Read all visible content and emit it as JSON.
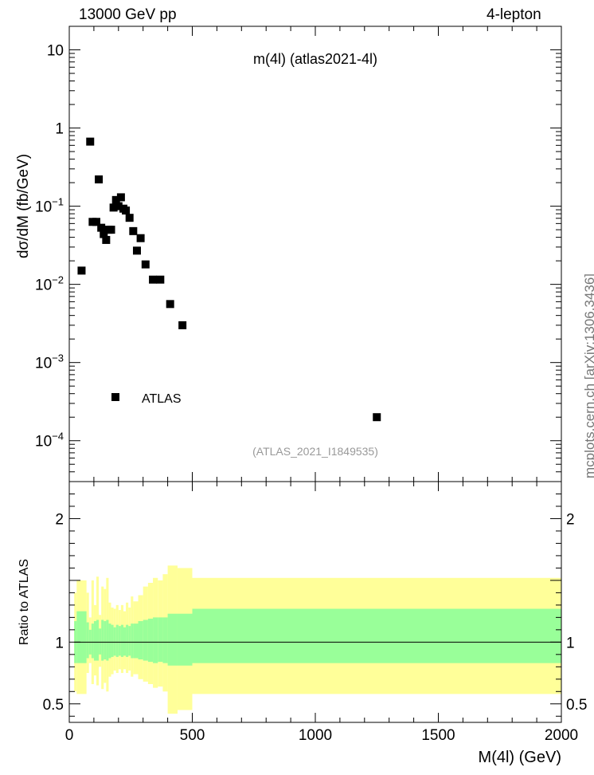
{
  "header": {
    "energy_label": "13000 GeV pp",
    "process_label": "4-lepton"
  },
  "side_note": "mcplots.cern.ch [arXiv:1306.3436]",
  "chart_data": [
    {
      "type": "scatter",
      "title": "m(4l) (atlas2021-4l)",
      "ylabel": "dσ/dM (fb/GeV)",
      "xlabel": "",
      "yscale": "log",
      "xlim": [
        0,
        2000
      ],
      "ylim": [
        3e-05,
        20
      ],
      "ytick_labels": [
        {
          "value": 10,
          "base": "10",
          "exp": ""
        },
        {
          "value": 1,
          "base": "1",
          "exp": ""
        },
        {
          "value": 0.1,
          "base": "10",
          "exp": "−1"
        },
        {
          "value": 0.01,
          "base": "10",
          "exp": "−2"
        },
        {
          "value": 0.001,
          "base": "10",
          "exp": "−3"
        },
        {
          "value": 0.0001,
          "base": "10",
          "exp": "−4"
        }
      ],
      "legend": {
        "label": "ATLAS",
        "position": "bottom-left"
      },
      "annotation": "(ATLAS_2021_I1849535)",
      "series": [
        {
          "name": "ATLAS",
          "points": [
            {
              "x": 50,
              "y": 0.015
            },
            {
              "x": 85,
              "y": 0.67
            },
            {
              "x": 95,
              "y": 0.063
            },
            {
              "x": 110,
              "y": 0.063
            },
            {
              "x": 120,
              "y": 0.22
            },
            {
              "x": 130,
              "y": 0.053
            },
            {
              "x": 140,
              "y": 0.044
            },
            {
              "x": 150,
              "y": 0.037
            },
            {
              "x": 160,
              "y": 0.05
            },
            {
              "x": 170,
              "y": 0.05
            },
            {
              "x": 180,
              "y": 0.096
            },
            {
              "x": 190,
              "y": 0.12
            },
            {
              "x": 200,
              "y": 0.1
            },
            {
              "x": 210,
              "y": 0.13
            },
            {
              "x": 220,
              "y": 0.093
            },
            {
              "x": 230,
              "y": 0.088
            },
            {
              "x": 245,
              "y": 0.071
            },
            {
              "x": 260,
              "y": 0.048
            },
            {
              "x": 275,
              "y": 0.027
            },
            {
              "x": 290,
              "y": 0.039
            },
            {
              "x": 310,
              "y": 0.018
            },
            {
              "x": 340,
              "y": 0.0115
            },
            {
              "x": 370,
              "y": 0.0115
            },
            {
              "x": 410,
              "y": 0.0056
            },
            {
              "x": 460,
              "y": 0.003
            },
            {
              "x": 1250,
              "y": 0.0002
            }
          ]
        }
      ]
    },
    {
      "type": "area",
      "title": "",
      "xlabel": "M(4l) (GeV)",
      "ylabel": "Ratio to ATLAS",
      "xlim": [
        0,
        2000
      ],
      "ylim": [
        0.35,
        2.3
      ],
      "xtick_labels": [
        "0",
        "500",
        "1000",
        "1500",
        "2000"
      ],
      "ytick_labels": [
        "0.5",
        "1",
        "2"
      ],
      "reference_line": 1,
      "bins": [
        {
          "x0": 20,
          "x1": 30,
          "inner": [
            0.83,
            1.17
          ],
          "outer": [
            0.6,
            1.4
          ]
        },
        {
          "x0": 30,
          "x1": 70,
          "inner": [
            0.83,
            1.25
          ],
          "outer": [
            0.58,
            1.5
          ]
        },
        {
          "x0": 70,
          "x1": 80,
          "inner": [
            0.87,
            1.16
          ],
          "outer": [
            0.75,
            1.4
          ]
        },
        {
          "x0": 80,
          "x1": 90,
          "inner": [
            0.9,
            1.1
          ],
          "outer": [
            0.83,
            1.2
          ]
        },
        {
          "x0": 90,
          "x1": 100,
          "inner": [
            0.87,
            1.15
          ],
          "outer": [
            0.66,
            1.5
          ]
        },
        {
          "x0": 100,
          "x1": 110,
          "inner": [
            0.85,
            1.17
          ],
          "outer": [
            0.73,
            1.3
          ]
        },
        {
          "x0": 110,
          "x1": 120,
          "inner": [
            0.85,
            1.18
          ],
          "outer": [
            0.65,
            1.53
          ]
        },
        {
          "x0": 120,
          "x1": 130,
          "inner": [
            0.9,
            1.11
          ],
          "outer": [
            0.8,
            1.22
          ]
        },
        {
          "x0": 130,
          "x1": 140,
          "inner": [
            0.85,
            1.18
          ],
          "outer": [
            0.62,
            1.45
          ]
        },
        {
          "x0": 140,
          "x1": 150,
          "inner": [
            0.86,
            1.17
          ],
          "outer": [
            0.67,
            1.43
          ]
        },
        {
          "x0": 150,
          "x1": 160,
          "inner": [
            0.85,
            1.18
          ],
          "outer": [
            0.6,
            1.52
          ]
        },
        {
          "x0": 160,
          "x1": 170,
          "inner": [
            0.87,
            1.15
          ],
          "outer": [
            0.72,
            1.32
          ]
        },
        {
          "x0": 170,
          "x1": 180,
          "inner": [
            0.88,
            1.14
          ],
          "outer": [
            0.74,
            1.28
          ]
        },
        {
          "x0": 180,
          "x1": 190,
          "inner": [
            0.89,
            1.12
          ],
          "outer": [
            0.77,
            1.27
          ]
        },
        {
          "x0": 190,
          "x1": 200,
          "inner": [
            0.88,
            1.14
          ],
          "outer": [
            0.75,
            1.3
          ]
        },
        {
          "x0": 200,
          "x1": 210,
          "inner": [
            0.89,
            1.13
          ],
          "outer": [
            0.78,
            1.26
          ]
        },
        {
          "x0": 210,
          "x1": 220,
          "inner": [
            0.88,
            1.14
          ],
          "outer": [
            0.75,
            1.3
          ]
        },
        {
          "x0": 220,
          "x1": 230,
          "inner": [
            0.89,
            1.12
          ],
          "outer": [
            0.78,
            1.25
          ]
        },
        {
          "x0": 230,
          "x1": 240,
          "inner": [
            0.88,
            1.14
          ],
          "outer": [
            0.75,
            1.32
          ]
        },
        {
          "x0": 240,
          "x1": 250,
          "inner": [
            0.89,
            1.13
          ],
          "outer": [
            0.77,
            1.28
          ]
        },
        {
          "x0": 250,
          "x1": 260,
          "inner": [
            0.87,
            1.15
          ],
          "outer": [
            0.72,
            1.37
          ]
        },
        {
          "x0": 260,
          "x1": 280,
          "inner": [
            0.87,
            1.15
          ],
          "outer": [
            0.74,
            1.33
          ]
        },
        {
          "x0": 280,
          "x1": 300,
          "inner": [
            0.86,
            1.17
          ],
          "outer": [
            0.7,
            1.38
          ]
        },
        {
          "x0": 300,
          "x1": 320,
          "inner": [
            0.85,
            1.18
          ],
          "outer": [
            0.68,
            1.45
          ]
        },
        {
          "x0": 320,
          "x1": 340,
          "inner": [
            0.84,
            1.19
          ],
          "outer": [
            0.66,
            1.48
          ]
        },
        {
          "x0": 340,
          "x1": 360,
          "inner": [
            0.83,
            1.2
          ],
          "outer": [
            0.63,
            1.52
          ]
        },
        {
          "x0": 360,
          "x1": 380,
          "inner": [
            0.84,
            1.2
          ],
          "outer": [
            0.64,
            1.5
          ]
        },
        {
          "x0": 380,
          "x1": 400,
          "inner": [
            0.83,
            1.2
          ],
          "outer": [
            0.6,
            1.55
          ]
        },
        {
          "x0": 400,
          "x1": 440,
          "inner": [
            0.81,
            1.23
          ],
          "outer": [
            0.42,
            1.62
          ]
        },
        {
          "x0": 440,
          "x1": 500,
          "inner": [
            0.81,
            1.23
          ],
          "outer": [
            0.45,
            1.6
          ]
        },
        {
          "x0": 500,
          "x1": 2000,
          "inner": [
            0.83,
            1.27
          ],
          "outer": [
            0.58,
            1.52
          ]
        }
      ]
    }
  ]
}
